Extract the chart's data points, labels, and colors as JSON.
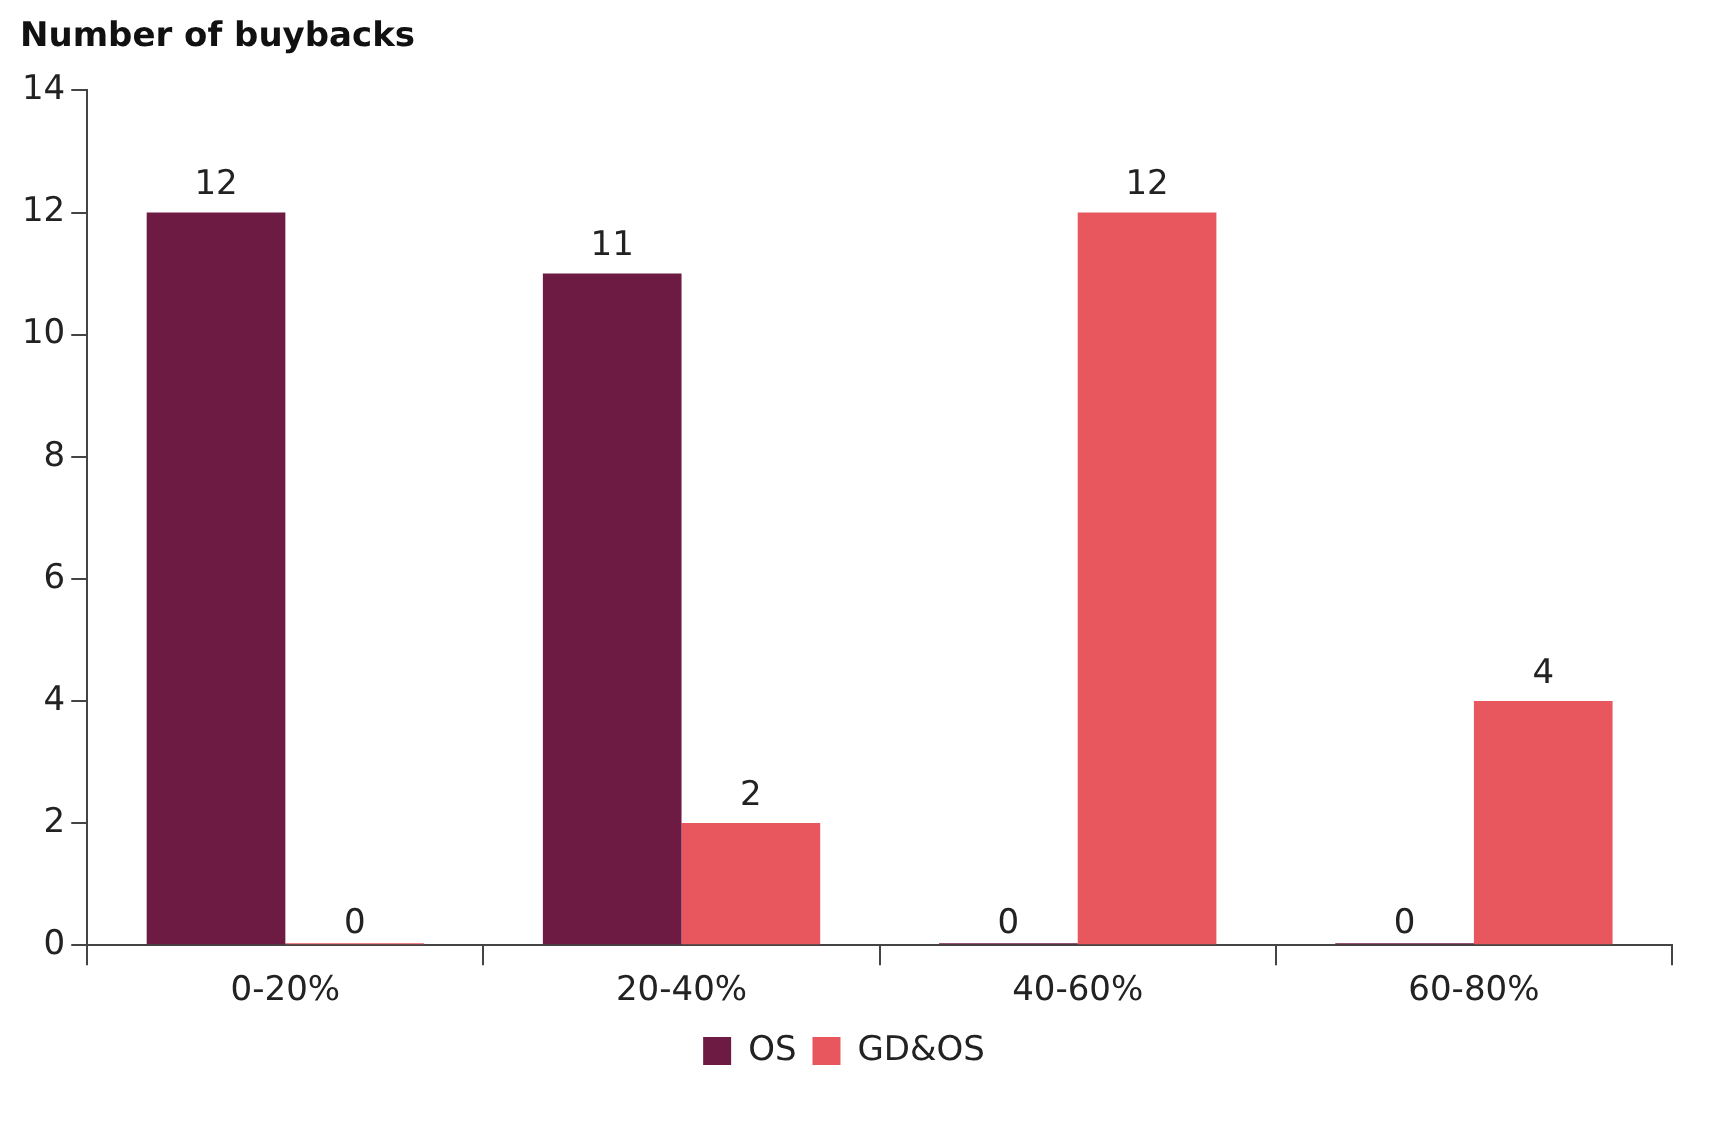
{
  "chart_data": {
    "type": "bar",
    "ylabel": "Number of buybacks",
    "categories": [
      "0-20%",
      "20-40%",
      "40-60%",
      "60-80%"
    ],
    "series": [
      {
        "name": "OS",
        "color": "#6e1b44",
        "values": [
          12,
          11,
          0,
          0
        ]
      },
      {
        "name": "GD&OS",
        "color": "#e9575e",
        "values": [
          0,
          2,
          12,
          4
        ]
      }
    ],
    "ylim": [
      0,
      14
    ],
    "yticks": [
      0,
      2,
      4,
      6,
      8,
      10,
      12,
      14
    ],
    "grid": false,
    "legend": "bottom",
    "data_labels": true
  }
}
